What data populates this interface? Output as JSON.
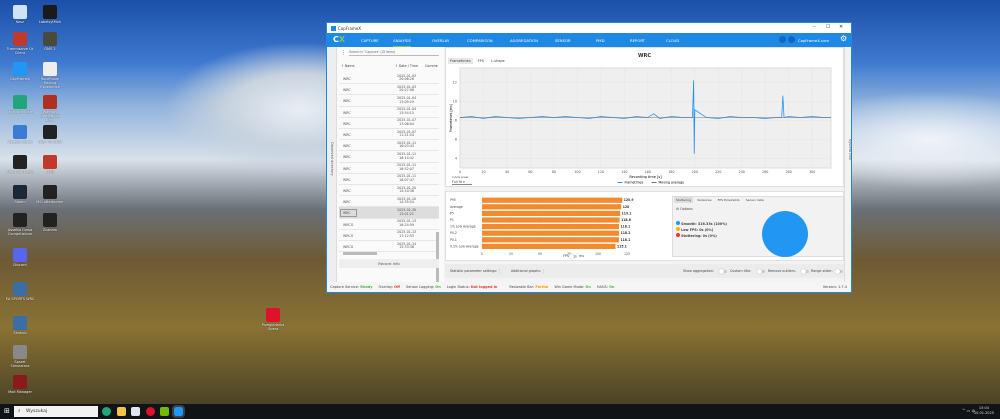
{
  "desktop": {
    "icons": [
      {
        "label": "Kosz",
        "color": "#cfe3f5"
      },
      {
        "label": "LabelsytMoh",
        "color": "#1a1a1a"
      },
      {
        "label": "Tranmisarze Qt Client",
        "color": "#c0392b"
      },
      {
        "label": "GMS 2",
        "color": "#4a4a3a"
      },
      {
        "label": "CapFrameX",
        "color": "#2196f3"
      },
      {
        "label": "RaceRoom Racing Experience",
        "color": "#eee"
      },
      {
        "label": "Microsoft Edge",
        "color": "#1fa67a"
      },
      {
        "label": "Warriors Brotherhood Beta",
        "color": "#b03020"
      },
      {
        "label": "Assetto Corsa",
        "color": "#3a7bd5"
      },
      {
        "label": "Gran Turismo",
        "color": "#222"
      },
      {
        "label": "Moza Pit House",
        "color": "#222"
      },
      {
        "label": "LMU",
        "color": "#c0392b"
      },
      {
        "label": "Steam",
        "color": "#1b2838"
      },
      {
        "label": "MSI Afterburner",
        "color": "#222"
      },
      {
        "label": "Assetto Corsa Competizione",
        "color": "#222"
      },
      {
        "label": "Zoznam",
        "color": "#222"
      },
      {
        "label": "Discord",
        "color": "#5865f2"
      },
      {
        "label": "EA SPORTS WRC",
        "color": "#3a6ea5"
      },
      {
        "label": "Simhub",
        "color": "#3a6ea5"
      },
      {
        "label": "Sprzet Simulatora",
        "color": "#888"
      },
      {
        "label": "Mod Manager",
        "color": "#8b1a1a"
      },
      {
        "label": "Przegladarka Opera",
        "color": "#e0112b"
      }
    ]
  },
  "taskbar": {
    "search_placeholder": "Wyszukaj",
    "time": "15:04",
    "date": "20.01.2025"
  },
  "app": {
    "title": "CapFrameX",
    "nav": [
      "CAPTURE",
      "ANALYSIS",
      "OVERLAY",
      "COMPARISON",
      "AGGREGATION",
      "SENSOR",
      "PMD",
      "REPORT",
      "CLOUD"
    ],
    "nav_active": "ANALYSIS",
    "site": "CapFrameX.com",
    "accent": "#1e88e5",
    "left": {
      "search_placeholder": "Search in \"Captures\" (33 items)",
      "observed_directory": "Observed directory",
      "col_name": "Name",
      "col_date": "Date / Time",
      "col_comment": "Comme",
      "records": [
        {
          "name": "WRC",
          "date": "2025-01-03",
          "time": "20:06:26"
        },
        {
          "name": "WRC",
          "date": "2025-01-03",
          "time": "20:27:08"
        },
        {
          "name": "WRC",
          "date": "2025-01-04",
          "time": "13:09:29"
        },
        {
          "name": "WRC",
          "date": "2025-01-04",
          "time": "13:54:15"
        },
        {
          "name": "WRC",
          "date": "2025-01-07",
          "time": "13:06:04"
        },
        {
          "name": "WRC",
          "date": "2025-01-07",
          "time": "11:21:54"
        },
        {
          "name": "WRC",
          "date": "2025-01-11",
          "time": "16:03:43"
        },
        {
          "name": "WRC",
          "date": "2025-01-11",
          "time": "16:14:42"
        },
        {
          "name": "WRC",
          "date": "2025-01-11",
          "time": "16:52:07"
        },
        {
          "name": "WRC",
          "date": "2025-01-11",
          "time": "16:07:47"
        },
        {
          "name": "WRC",
          "date": "2025-01-20",
          "time": "14:10:36"
        },
        {
          "name": "WRC",
          "date": "2025-01-20",
          "time": "14:35:54"
        },
        {
          "name": "WRC",
          "date": "2025-01-30",
          "time": "13:01:21",
          "selected": true
        },
        {
          "name": "WRCG",
          "date": "2025-01-13",
          "time": "16:24:59"
        },
        {
          "name": "WRCG",
          "date": "2025-01-13",
          "time": "17:12:53"
        },
        {
          "name": "WRCG",
          "date": "2025-01-14",
          "time": "15:33:36"
        }
      ],
      "record_info": "Record info"
    },
    "chart_tabs": [
      "Frametimes",
      "FPS",
      "L-shape"
    ],
    "system_info": "System Info",
    "y_axis_scale_label": "Y-Axis scale",
    "y_axis_scale_value": "Full fit",
    "bottom_tabs": [
      "Stuttering",
      "Variances",
      "FPS thresholds",
      "Sensor data"
    ],
    "options": "Options",
    "stutter_legend": [
      {
        "label": "Smooth: 316.33s (100%)",
        "color": "#2196f3"
      },
      {
        "label": "Low FPS: 0s (0%)",
        "color": "#ffb300"
      },
      {
        "label": "Stuttering: 0s (0%)",
        "color": "#e53935"
      }
    ],
    "fps_unit_left": "FPS",
    "fps_unit_right": "ms",
    "settings": {
      "stat_params": "Statistic parameter settings:",
      "additional_graphs": "Additional graphs:",
      "show_aggregation": "Show aggregation:",
      "custom_title": "Custom title:",
      "remove_outliers": "Remove outliers:",
      "range_slider": "Range slider:"
    },
    "status": [
      {
        "label": "Capture Service:",
        "value": "Ready",
        "color": "#4caf50"
      },
      {
        "label": "Overlay:",
        "value": "Off",
        "color": "#e53935"
      },
      {
        "label": "Sensor Logging:",
        "value": "On",
        "color": "#4caf50"
      },
      {
        "label": "Login Status:",
        "value": "Not logged in",
        "color": "#e53935"
      },
      {
        "label": "Resizable Bar:",
        "value": "Partial",
        "color": "#ff9800"
      },
      {
        "label": "Win Game Mode:",
        "value": "On",
        "color": "#4caf50"
      },
      {
        "label": "HAGS:",
        "value": "On",
        "color": "#4caf50"
      }
    ],
    "version": "Version: 1.7.4"
  },
  "chart_data": [
    {
      "type": "line",
      "title": "WRC",
      "xlabel": "Recording time [s]",
      "ylabel": "Frametimes [ms]",
      "xlim": [
        0,
        316
      ],
      "ylim": [
        3,
        13.5
      ],
      "xticks": [
        0,
        20,
        40,
        60,
        80,
        100,
        120,
        140,
        160,
        180,
        200,
        220,
        240,
        260,
        280,
        300
      ],
      "yticks": [
        4,
        6,
        8,
        10,
        12
      ],
      "grid": true,
      "legend": "bottom",
      "series": [
        {
          "name": "Frametimes",
          "color": "#2196f3",
          "x": [
            0,
            10,
            20,
            30,
            40,
            50,
            60,
            70,
            80,
            90,
            100,
            110,
            120,
            130,
            140,
            150,
            160,
            165,
            170,
            180,
            190,
            198,
            199,
            199.5,
            200,
            210,
            220,
            230,
            240,
            250,
            260,
            270,
            274,
            275,
            276,
            280,
            290,
            300,
            310,
            316
          ],
          "y": [
            8.3,
            8.4,
            8.2,
            8.4,
            8.3,
            8.2,
            8.3,
            8.4,
            8.3,
            8.4,
            8.3,
            8.2,
            8.4,
            8.3,
            8.2,
            8.4,
            8.3,
            8.7,
            8.2,
            8.4,
            8.3,
            8.3,
            12.2,
            4.5,
            9.1,
            8.3,
            8.2,
            8.4,
            8.3,
            8.3,
            8.2,
            8.3,
            8.3,
            10.6,
            8.3,
            8.4,
            8.3,
            8.4,
            8.3,
            8.3
          ]
        },
        {
          "name": "Moving average",
          "color": "#8d6e63",
          "x": [
            0,
            316
          ],
          "y": [
            8.3,
            8.3
          ]
        }
      ]
    },
    {
      "type": "bar",
      "orientation": "horizontal",
      "xlim": [
        0,
        125
      ],
      "xticks": [
        0,
        25,
        50,
        75,
        100,
        125
      ],
      "color": "#f28a2e",
      "categories": [
        "P95",
        "Average",
        "P5",
        "P1",
        "1% Low Average",
        "P0.2",
        "P0.1",
        "0.1% Low Average"
      ],
      "values": [
        120.9,
        120,
        119.1,
        118.6,
        118.1,
        118.2,
        118.1,
        115.1
      ]
    },
    {
      "type": "pie",
      "slices": [
        {
          "label": "Smooth",
          "value": 100,
          "color": "#2196f3"
        },
        {
          "label": "Low FPS",
          "value": 0,
          "color": "#ffb300"
        },
        {
          "label": "Stuttering",
          "value": 0,
          "color": "#e53935"
        }
      ]
    }
  ]
}
